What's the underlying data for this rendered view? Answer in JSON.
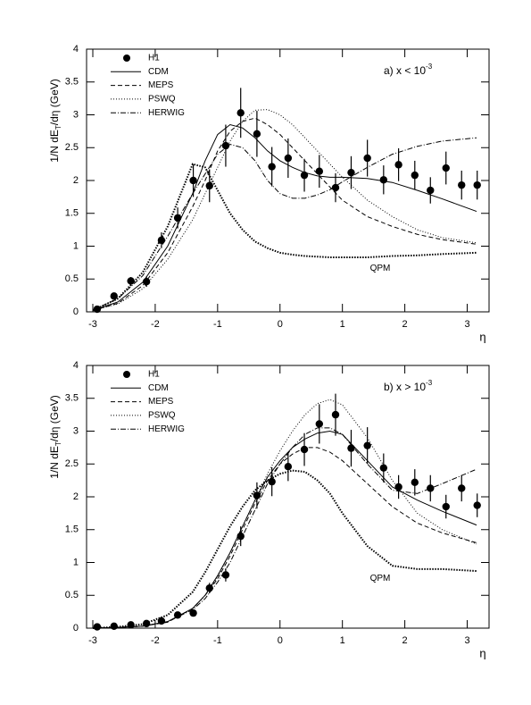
{
  "chart_data": [
    {
      "type": "line",
      "annotation": {
        "text": "a)  x < 10",
        "superscript": "-3"
      },
      "ylabel": {
        "main": "1/N dE",
        "sub": "T",
        "rest": "/dη (GeV)"
      },
      "xlabel": "η",
      "xlim": [
        -3.1,
        3.35
      ],
      "ylim": [
        0,
        4
      ],
      "xticks": [
        -3,
        -2,
        -1,
        0,
        1,
        2,
        3
      ],
      "yticks": [
        0,
        0.5,
        1,
        1.5,
        2,
        2.5,
        3,
        3.5,
        4
      ],
      "points": {
        "name": "H1",
        "color": "#000000",
        "x": [
          -2.93,
          -2.66,
          -2.39,
          -2.14,
          -1.9,
          -1.64,
          -1.39,
          -1.13,
          -0.87,
          -0.63,
          -0.37,
          -0.13,
          0.13,
          0.39,
          0.63,
          0.89,
          1.14,
          1.4,
          1.66,
          1.9,
          2.16,
          2.41,
          2.66,
          2.91,
          3.16
        ],
        "values": [
          0.04,
          0.24,
          0.47,
          0.46,
          1.09,
          1.43,
          2.0,
          1.92,
          2.53,
          3.03,
          2.71,
          2.21,
          2.34,
          2.08,
          2.14,
          1.89,
          2.12,
          2.34,
          2.01,
          2.24,
          2.08,
          1.85,
          2.19,
          1.93,
          1.93
        ],
        "errors": [
          0.03,
          0.05,
          0.06,
          0.08,
          0.12,
          0.16,
          0.25,
          0.25,
          0.32,
          0.38,
          0.35,
          0.3,
          0.3,
          0.25,
          0.25,
          0.22,
          0.25,
          0.28,
          0.22,
          0.25,
          0.22,
          0.2,
          0.25,
          0.22,
          0.22
        ]
      },
      "x": [
        -3,
        -2.6,
        -2.2,
        -1.8,
        -1.4,
        -1.2,
        -1,
        -0.8,
        -0.6,
        -0.4,
        -0.2,
        0,
        0.2,
        0.4,
        0.6,
        0.8,
        1,
        1.4,
        1.8,
        2.2,
        2.6,
        3.15
      ],
      "series": [
        {
          "name": "CDM",
          "color": "#000000",
          "dash": "none",
          "values": [
            0.02,
            0.15,
            0.45,
            1.0,
            1.8,
            2.3,
            2.7,
            2.85,
            2.8,
            2.65,
            2.45,
            2.3,
            2.2,
            2.12,
            2.07,
            2.05,
            2.05,
            2.03,
            1.97,
            1.85,
            1.72,
            1.53
          ]
        },
        {
          "name": "MEPS",
          "color": "#000000",
          "dash": "5,3",
          "values": [
            0.02,
            0.13,
            0.4,
            0.9,
            1.6,
            2.0,
            2.45,
            2.75,
            2.9,
            2.95,
            2.85,
            2.7,
            2.5,
            2.3,
            2.1,
            1.9,
            1.7,
            1.45,
            1.3,
            1.18,
            1.1,
            1.03
          ]
        },
        {
          "name": "PSWQ",
          "color": "#000000",
          "dash": "1,2",
          "values": [
            0.02,
            0.12,
            0.35,
            0.8,
            1.4,
            1.8,
            2.2,
            2.6,
            2.9,
            3.07,
            3.08,
            3.0,
            2.85,
            2.65,
            2.45,
            2.25,
            2.05,
            1.7,
            1.45,
            1.25,
            1.13,
            1.05
          ]
        },
        {
          "name": "HERWIG",
          "color": "#000000",
          "dash": "6,2,1,2",
          "values": [
            0.03,
            0.2,
            0.55,
            1.15,
            1.8,
            2.1,
            2.4,
            2.55,
            2.5,
            2.3,
            2.0,
            1.8,
            1.73,
            1.73,
            1.78,
            1.86,
            1.98,
            2.2,
            2.4,
            2.52,
            2.6,
            2.65
          ]
        }
      ],
      "annotated_curve": {
        "name": "QPM",
        "color": "#000000",
        "dash": "1.5,1.5",
        "values": [
          0.02,
          0.2,
          0.6,
          1.3,
          2.25,
          2.2,
          1.85,
          1.5,
          1.25,
          1.07,
          0.97,
          0.9,
          0.87,
          0.85,
          0.84,
          0.83,
          0.83,
          0.83,
          0.85,
          0.86,
          0.88,
          0.9
        ]
      }
    },
    {
      "type": "line",
      "annotation": {
        "text": "b)  x > 10",
        "superscript": "-3"
      },
      "ylabel": {
        "main": "1/N dE",
        "sub": "T",
        "rest": "/dη (GeV)"
      },
      "xlabel": "η",
      "xlim": [
        -3.1,
        3.35
      ],
      "ylim": [
        0,
        4
      ],
      "xticks": [
        -3,
        -2,
        -1,
        0,
        1,
        2,
        3
      ],
      "yticks": [
        0,
        0.5,
        1,
        1.5,
        2,
        2.5,
        3,
        3.5,
        4
      ],
      "points": {
        "name": "H1",
        "color": "#000000",
        "x": [
          -2.93,
          -2.66,
          -2.39,
          -2.14,
          -1.9,
          -1.64,
          -1.39,
          -1.13,
          -0.87,
          -0.63,
          -0.37,
          -0.13,
          0.13,
          0.39,
          0.63,
          0.89,
          1.14,
          1.4,
          1.66,
          1.9,
          2.16,
          2.41,
          2.66,
          2.91,
          3.16
        ],
        "values": [
          0.02,
          0.03,
          0.05,
          0.07,
          0.11,
          0.2,
          0.23,
          0.61,
          0.81,
          1.4,
          2.02,
          2.23,
          2.46,
          2.72,
          3.11,
          3.25,
          2.74,
          2.78,
          2.44,
          2.15,
          2.22,
          2.13,
          1.85,
          2.13,
          1.87
        ],
        "errors": [
          0.01,
          0.01,
          0.02,
          0.02,
          0.03,
          0.04,
          0.05,
          0.08,
          0.1,
          0.15,
          0.2,
          0.22,
          0.22,
          0.25,
          0.3,
          0.32,
          0.28,
          0.28,
          0.22,
          0.18,
          0.2,
          0.2,
          0.18,
          0.2,
          0.18
        ]
      },
      "x": [
        -3,
        -2.6,
        -2.2,
        -1.8,
        -1.4,
        -1.2,
        -1,
        -0.8,
        -0.6,
        -0.4,
        -0.2,
        0,
        0.2,
        0.4,
        0.6,
        0.8,
        1,
        1.4,
        1.8,
        2.2,
        2.6,
        3.15
      ],
      "series": [
        {
          "name": "CDM",
          "color": "#000000",
          "dash": "none",
          "values": [
            0.0,
            0.01,
            0.03,
            0.1,
            0.3,
            0.5,
            0.8,
            1.15,
            1.55,
            1.95,
            2.3,
            2.55,
            2.75,
            2.88,
            2.97,
            3.0,
            2.95,
            2.55,
            2.15,
            1.95,
            1.78,
            1.57
          ]
        },
        {
          "name": "MEPS",
          "color": "#000000",
          "dash": "5,3",
          "values": [
            0,
            0.01,
            0.03,
            0.09,
            0.3,
            0.5,
            0.75,
            1.1,
            1.5,
            1.9,
            2.25,
            2.5,
            2.65,
            2.75,
            2.75,
            2.68,
            2.55,
            2.2,
            1.85,
            1.6,
            1.45,
            1.3
          ]
        },
        {
          "name": "PSWQ",
          "color": "#000000",
          "dash": "1,2",
          "values": [
            0,
            0.01,
            0.03,
            0.1,
            0.3,
            0.5,
            0.78,
            1.15,
            1.55,
            1.95,
            2.35,
            2.7,
            3.0,
            3.25,
            3.42,
            3.48,
            3.4,
            2.9,
            2.25,
            1.75,
            1.5,
            1.28
          ]
        },
        {
          "name": "HERWIG",
          "color": "#000000",
          "dash": "6,2,1,2",
          "values": [
            0,
            0.01,
            0.03,
            0.1,
            0.28,
            0.45,
            0.7,
            1.0,
            1.4,
            1.8,
            2.2,
            2.5,
            2.75,
            2.95,
            3.05,
            3.05,
            2.95,
            2.5,
            2.1,
            2.05,
            2.2,
            2.42
          ]
        }
      ],
      "annotated_curve": {
        "name": "QPM",
        "color": "#000000",
        "dash": "1.5,1.5",
        "values": [
          0,
          0.02,
          0.06,
          0.2,
          0.55,
          0.85,
          1.2,
          1.55,
          1.85,
          2.1,
          2.25,
          2.35,
          2.4,
          2.38,
          2.25,
          2.05,
          1.75,
          1.25,
          0.95,
          0.9,
          0.9,
          0.87
        ]
      }
    }
  ]
}
